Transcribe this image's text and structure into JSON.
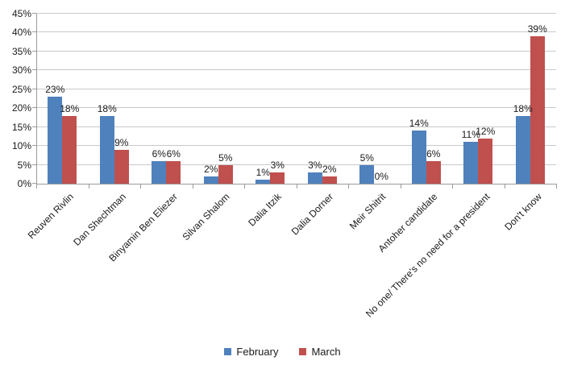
{
  "chart_data": {
    "type": "bar",
    "title": "",
    "categories": [
      "Reuven Rivlin",
      "Dan Shechtman",
      "Binyamin Ben Eliezer",
      "Silvan Shalom",
      "Dalia Itzik",
      "Dalia Dorner",
      "Meir Shitrit",
      "Antoher candidate",
      "No one/ There's no need for a president",
      "Don't know"
    ],
    "series": [
      {
        "name": "February",
        "color": "#4F81BD",
        "values": [
          23,
          18,
          6,
          2,
          1,
          3,
          5,
          14,
          11,
          18
        ]
      },
      {
        "name": "March",
        "color": "#C0504D",
        "values": [
          18,
          9,
          6,
          5,
          3,
          2,
          0,
          6,
          12,
          39
        ]
      }
    ],
    "ylim": [
      0,
      45
    ],
    "ytick_step": 5,
    "yticks": [
      "0%",
      "5%",
      "10%",
      "15%",
      "20%",
      "25%",
      "30%",
      "35%",
      "40%",
      "45%"
    ],
    "data_labels": true,
    "label_suffix": "%",
    "grid": true,
    "legend_position": "bottom",
    "gridline_color": "#C9C9C9",
    "axis_color": "#9B9B9B",
    "text_color": "#1a1a1a"
  }
}
